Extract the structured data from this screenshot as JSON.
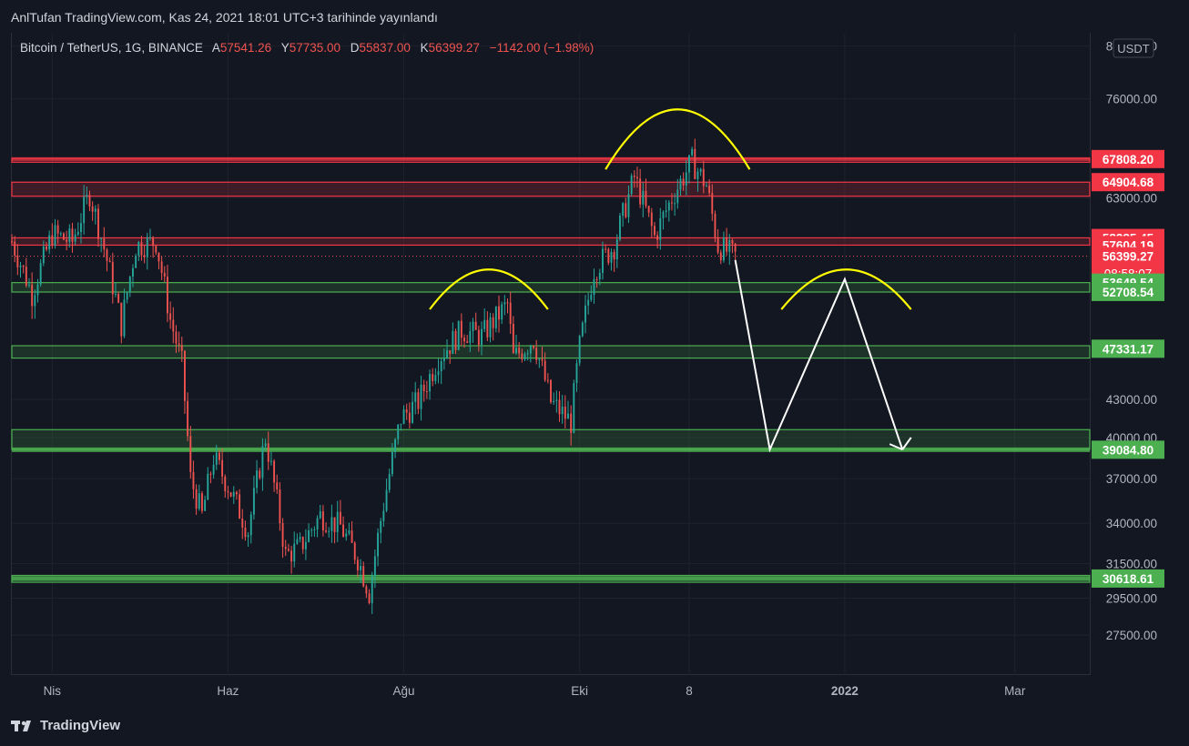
{
  "header": {
    "publish_text": "AnlTufan TradingView.com, Kas 24, 2021 18:01 UTC+3 tarihinde yayınlandı"
  },
  "legend": {
    "symbol": "Bitcoin / TetherUS, 1G, BINANCE",
    "open_label": "A",
    "open_value": "57541.26",
    "high_label": "Y",
    "high_value": "57735.00",
    "low_label": "D",
    "low_value": "55837.00",
    "close_label": "K",
    "close_value": "56399.27",
    "change": "−1142.00 (−1.98%)"
  },
  "footer": {
    "brand": "TradingView"
  },
  "colors": {
    "background": "#131722",
    "up": "#26a69a",
    "down": "#ef5350",
    "resistance": "#f23645",
    "support": "#4caf50",
    "annotation_yellow": "#ffff00",
    "annotation_white": "#ffffff"
  },
  "chart_data": {
    "type": "candlestick",
    "title": "Bitcoin / TetherUS, 1G, BINANCE",
    "currency_label": "USDT",
    "y_scale": "log",
    "ylim": [
      25500,
      86000
    ],
    "y_ticks": [
      {
        "value": 84000,
        "label": "84000.00"
      },
      {
        "value": 76000,
        "label": "76000.00"
      },
      {
        "value": 63000,
        "label": "63000.00"
      },
      {
        "value": 43000,
        "label": "43000.00"
      },
      {
        "value": 40000,
        "label": "40000.00"
      },
      {
        "value": 37000,
        "label": "37000.00"
      },
      {
        "value": 34000,
        "label": "34000.00"
      },
      {
        "value": 31500,
        "label": "31500.00"
      },
      {
        "value": 29500,
        "label": "29500.00"
      },
      {
        "value": 27500,
        "label": "27500.00"
      }
    ],
    "x_ticks": [
      {
        "date": "2021-04-01",
        "label": "Nis",
        "bold": false
      },
      {
        "date": "2021-06-01",
        "label": "Haz",
        "bold": false
      },
      {
        "date": "2021-08-01",
        "label": "Ağu",
        "bold": false
      },
      {
        "date": "2021-10-01",
        "label": "Eki",
        "bold": false
      },
      {
        "date": "2021-11-08",
        "label": "8",
        "bold": false
      },
      {
        "date": "2022-01-01",
        "label": "2022",
        "bold": true
      },
      {
        "date": "2022-03-01",
        "label": "Mar",
        "bold": false
      }
    ],
    "xlim": [
      "2021-03-18",
      "2022-03-27"
    ],
    "price_labels": [
      {
        "value": 67808.2,
        "label": "67808.20",
        "color": "#f23645"
      },
      {
        "value": 64904.68,
        "label": "64904.68",
        "color": "#f23645"
      },
      {
        "value": 58385.45,
        "label": "58385.45",
        "color": "#f23645"
      },
      {
        "value": 57604.19,
        "label": "57604.19",
        "color": "#f23645"
      },
      {
        "value": 56399.27,
        "label": "56399.27",
        "color": "#f23645",
        "sub": "08:58:07"
      },
      {
        "value": 53649.54,
        "label": "53649.54",
        "color": "#4caf50"
      },
      {
        "value": 52708.54,
        "label": "52708.54",
        "color": "#4caf50"
      },
      {
        "value": 47331.17,
        "label": "47331.17",
        "color": "#4caf50"
      },
      {
        "value": 39084.8,
        "label": "39084.80",
        "color": "#4caf50"
      },
      {
        "value": 30618.61,
        "label": "30618.61",
        "color": "#4caf50"
      }
    ],
    "zones": [
      {
        "from": 67400,
        "to": 67900,
        "color": "#f23645"
      },
      {
        "from": 63200,
        "to": 64900,
        "color": "#f23645"
      },
      {
        "from": 57600,
        "to": 58400,
        "color": "#f23645"
      },
      {
        "from": 52700,
        "to": 53650,
        "color": "#4caf50"
      },
      {
        "from": 46500,
        "to": 47600,
        "color": "#4caf50"
      },
      {
        "from": 39100,
        "to": 40600,
        "color": "#4caf50"
      },
      {
        "from": 30400,
        "to": 30800,
        "color": "#4caf50"
      }
    ],
    "candle_anchors": [
      [
        "2021-03-18",
        58000
      ],
      [
        "2021-03-25",
        52500
      ],
      [
        "2021-04-01",
        58800
      ],
      [
        "2021-04-08",
        58000
      ],
      [
        "2021-04-14",
        63500
      ],
      [
        "2021-04-20",
        56000
      ],
      [
        "2021-04-25",
        49500
      ],
      [
        "2021-04-30",
        57500
      ],
      [
        "2021-05-07",
        58000
      ],
      [
        "2021-05-12",
        50000
      ],
      [
        "2021-05-16",
        46000
      ],
      [
        "2021-05-19",
        37000
      ],
      [
        "2021-05-23",
        34500
      ],
      [
        "2021-05-27",
        38500
      ],
      [
        "2021-06-01",
        36500
      ],
      [
        "2021-06-08",
        33500
      ],
      [
        "2021-06-14",
        40000
      ],
      [
        "2021-06-21",
        32000
      ],
      [
        "2021-06-26",
        32500
      ],
      [
        "2021-07-03",
        34500
      ],
      [
        "2021-07-10",
        33800
      ],
      [
        "2021-07-16",
        31800
      ],
      [
        "2021-07-20",
        29800
      ],
      [
        "2021-07-24",
        34200
      ],
      [
        "2021-07-31",
        41500
      ],
      [
        "2021-08-06",
        42800
      ],
      [
        "2021-08-13",
        46500
      ],
      [
        "2021-08-21",
        49000
      ],
      [
        "2021-08-28",
        48500
      ],
      [
        "2021-09-06",
        51500
      ],
      [
        "2021-09-08",
        46500
      ],
      [
        "2021-09-15",
        48200
      ],
      [
        "2021-09-21",
        42800
      ],
      [
        "2021-09-28",
        41200
      ],
      [
        "2021-10-01",
        47500
      ],
      [
        "2021-10-06",
        55000
      ],
      [
        "2021-10-13",
        57500
      ],
      [
        "2021-10-20",
        65500
      ],
      [
        "2021-10-27",
        58500
      ],
      [
        "2021-11-02",
        63000
      ],
      [
        "2021-11-09",
        67500
      ],
      [
        "2021-11-14",
        64500
      ],
      [
        "2021-11-18",
        57500
      ],
      [
        "2021-11-24",
        56399
      ]
    ],
    "annotations": {
      "arcs": [
        {
          "x": [
            "2021-08-10",
            "2021-09-20"
          ],
          "y_base": 51000,
          "y_top": 55000
        },
        {
          "x": [
            "2021-10-10",
            "2021-11-29"
          ],
          "y_base": 66500,
          "y_top": 74500
        },
        {
          "x": [
            "2021-12-10",
            "2022-01-24"
          ],
          "y_base": 51000,
          "y_top": 55000
        }
      ],
      "path": [
        [
          "2021-11-24",
          56000
        ],
        [
          "2021-12-06",
          39100
        ],
        [
          "2022-01-01",
          54000
        ],
        [
          "2022-01-21",
          39100
        ]
      ],
      "arrow_tip": [
        "2022-01-24",
        40000
      ]
    }
  }
}
